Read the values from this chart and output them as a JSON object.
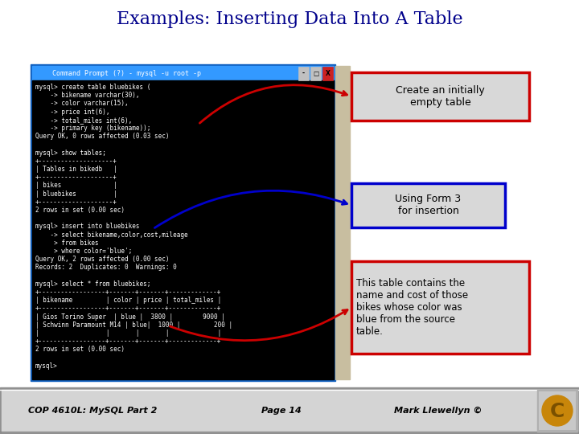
{
  "title": "Examples: Inserting Data Into A Table",
  "title_color": "#00008B",
  "title_fontsize": 16,
  "bg_color": "#FFFFFF",
  "footer_text1": "COP 4610L: MySQL Part 2",
  "footer_text2": "Page 14",
  "footer_text3": "Mark Llewellyn ©",
  "terminal_title": " Command Prompt (?) - mysql -u root -p",
  "terminal_bg": "#000000",
  "terminal_title_bg": "#3399FF",
  "terminal_text_color": "#FFFFFF",
  "terminal_lines": [
    "mysql> create table bluebikes (",
    "    -> bikename varchar(30),",
    "    -> color varchar(15),",
    "    -> price int(6),",
    "    -> total_miles int(6),",
    "    -> primary key (bikename));",
    "Query OK, 0 rows affected (0.03 sec)",
    "",
    "mysql> show tables;",
    "+--------------------+",
    "| Tables in bikedb   |",
    "+--------------------+",
    "| bikes              |",
    "| bluebikes          |",
    "+--------------------+",
    "2 rows in set (0.00 sec)",
    "",
    "mysql> insert into bluebikes",
    "    -> select bikename,color,cost,mileage",
    "     > from bikes",
    "     > where color='blue';",
    "Query OK, 2 rows affected (0.00 sec)",
    "Records: 2  Duplicates: 0  Warnings: 0",
    "",
    "mysql> select * from bluebikes;",
    "+------------------+-------+-------+-------------+",
    "| bikename         | color | price | total_miles |",
    "+------------------+-------+-------+-------------+",
    "| Gios Torino Super  | blue |  3800 |        9000 |",
    "| Schwinn Paramount M14 | blue|  1000 |         200 |",
    "|                  |       |       |             |",
    "+------------------+-------+-------+-------------+",
    "2 rows in set (0.00 sec)",
    "",
    "mysql>"
  ],
  "label1_text": "Create an initially\nempty table",
  "label2_text": "Using Form 3\nfor insertion",
  "label3_text": "This table contains the\nname and cost of those\nbikes whose color was\nblue from the source\ntable.",
  "label1_border": "#CC0000",
  "label2_border": "#0000CC",
  "label3_border": "#CC0000",
  "label_bg": "#D8D8D8",
  "arrow1_color": "#CC0000",
  "arrow2_color": "#0000CC",
  "arrow3_color": "#CC0000",
  "sep_color": "#C8BEA0",
  "logo_gold": "#C8860A",
  "logo_bg": "#C0C0C0"
}
